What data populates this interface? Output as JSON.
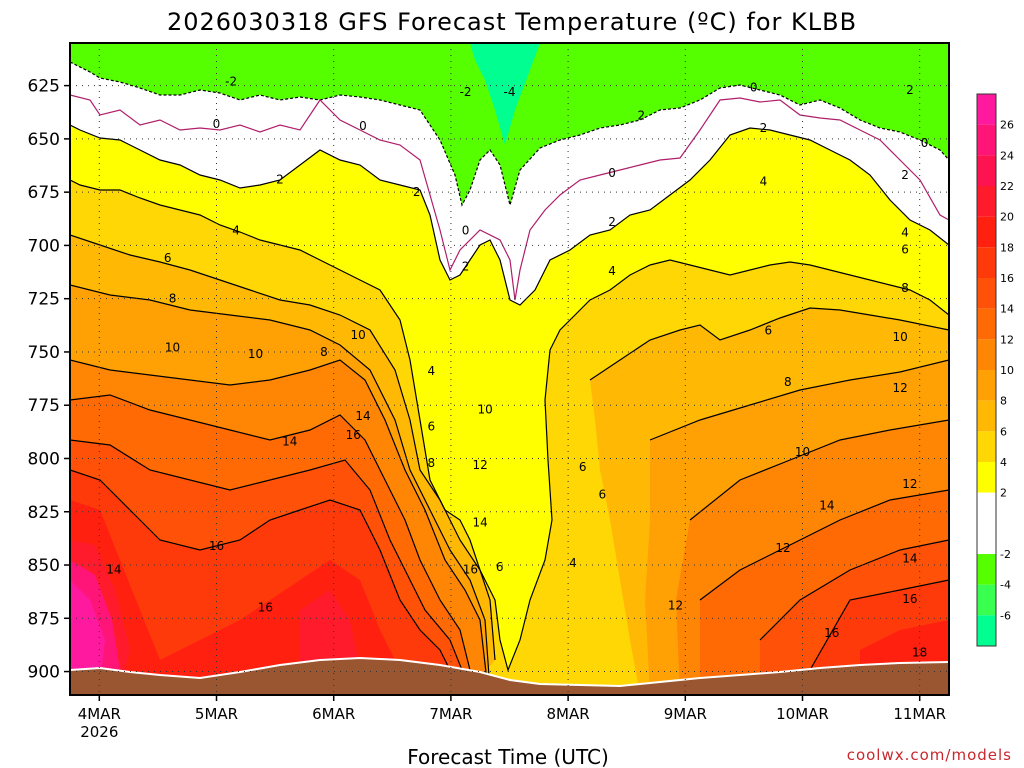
{
  "chart_data": {
    "type": "heatmap",
    "title": "2026030318 GFS Forecast Temperature (ºC) for KLBB",
    "xlabel": "Forecast Time (UTC)",
    "ylabel": "",
    "credit": "coolwx.com/models",
    "y_axis": {
      "ticks": [
        625,
        650,
        675,
        700,
        725,
        750,
        775,
        800,
        825,
        850,
        875,
        900
      ],
      "range": [
        605,
        911
      ],
      "units": "hPa",
      "inverted": true
    },
    "x_axis": {
      "ticks": [
        {
          "label": "4MAR",
          "sublabel": "2026",
          "hours": 6
        },
        {
          "label": "5MAR",
          "hours": 30
        },
        {
          "label": "6MAR",
          "hours": 54
        },
        {
          "label": "7MAR",
          "hours": 78
        },
        {
          "label": "8MAR",
          "hours": 102
        },
        {
          "label": "9MAR",
          "hours": 126
        },
        {
          "label": "10MAR",
          "hours": 150
        },
        {
          "label": "11MAR",
          "hours": 174
        }
      ],
      "range": [
        0,
        180
      ]
    },
    "grid": true,
    "colorbar": {
      "labels": [
        "26",
        "24",
        "22",
        "20",
        "18",
        "16",
        "14",
        "12",
        "10",
        "8",
        "6",
        "4",
        "2",
        "-2",
        "-4",
        "-6"
      ],
      "bands": [
        {
          "from": 26,
          "to": 28,
          "color": "#ff199f"
        },
        {
          "from": 24,
          "to": 26,
          "color": "#ff1478"
        },
        {
          "from": 22,
          "to": 24,
          "color": "#ff1250"
        },
        {
          "from": 20,
          "to": 22,
          "color": "#ff1a2c"
        },
        {
          "from": 18,
          "to": 20,
          "color": "#ff200f"
        },
        {
          "from": 16,
          "to": 18,
          "color": "#ff3a0a"
        },
        {
          "from": 14,
          "to": 16,
          "color": "#ff5208"
        },
        {
          "from": 12,
          "to": 14,
          "color": "#ff6a05"
        },
        {
          "from": 10,
          "to": 12,
          "color": "#ff8505"
        },
        {
          "from": 8,
          "to": 10,
          "color": "#ffa105"
        },
        {
          "from": 6,
          "to": 8,
          "color": "#ffb905"
        },
        {
          "from": 4,
          "to": 6,
          "color": "#ffd705"
        },
        {
          "from": 2,
          "to": 4,
          "color": "#ffff00"
        },
        {
          "from": -2,
          "to": 2,
          "color": "#ffffff"
        },
        {
          "from": -4,
          "to": -2,
          "color": "#55ff00"
        },
        {
          "from": -6,
          "to": -4,
          "color": "#38ff50"
        },
        {
          "from": -8,
          "to": -6,
          "color": "#00ff90"
        }
      ]
    },
    "surface_color": "#9a5630",
    "contour_labels": [
      {
        "text": "-2",
        "t": 33,
        "p": 623
      },
      {
        "text": "-2",
        "t": 81,
        "p": 628
      },
      {
        "text": "-4",
        "t": 90,
        "p": 628
      },
      {
        "text": "2",
        "t": 117,
        "p": 639
      },
      {
        "text": "0",
        "t": 140,
        "p": 626
      },
      {
        "text": "2",
        "t": 172,
        "p": 627
      },
      {
        "text": "0",
        "t": 30,
        "p": 643
      },
      {
        "text": "0",
        "t": 60,
        "p": 644
      },
      {
        "text": "0",
        "t": 111,
        "p": 666
      },
      {
        "text": "0",
        "t": 175,
        "p": 652
      },
      {
        "text": "2",
        "t": 142,
        "p": 645
      },
      {
        "text": "2",
        "t": 43,
        "p": 669
      },
      {
        "text": "2",
        "t": 71,
        "p": 675
      },
      {
        "text": "2",
        "t": 111,
        "p": 689
      },
      {
        "text": "2",
        "t": 171,
        "p": 667
      },
      {
        "text": "4",
        "t": 142,
        "p": 670
      },
      {
        "text": "4",
        "t": 171,
        "p": 694
      },
      {
        "text": "0",
        "t": 81,
        "p": 693
      },
      {
        "text": "4",
        "t": 34,
        "p": 693
      },
      {
        "text": "2",
        "t": 81,
        "p": 710
      },
      {
        "text": "4",
        "t": 111,
        "p": 712
      },
      {
        "text": "6",
        "t": 20,
        "p": 706
      },
      {
        "text": "6",
        "t": 171,
        "p": 702
      },
      {
        "text": "8",
        "t": 21,
        "p": 725
      },
      {
        "text": "8",
        "t": 171,
        "p": 720
      },
      {
        "text": "10",
        "t": 21,
        "p": 748
      },
      {
        "text": "10",
        "t": 38,
        "p": 751
      },
      {
        "text": "8",
        "t": 52,
        "p": 750
      },
      {
        "text": "10",
        "t": 59,
        "p": 742
      },
      {
        "text": "6",
        "t": 143,
        "p": 740
      },
      {
        "text": "10",
        "t": 170,
        "p": 743
      },
      {
        "text": "4",
        "t": 74,
        "p": 759
      },
      {
        "text": "8",
        "t": 147,
        "p": 764
      },
      {
        "text": "12",
        "t": 170,
        "p": 767
      },
      {
        "text": "14",
        "t": 60,
        "p": 780
      },
      {
        "text": "6",
        "t": 74,
        "p": 785
      },
      {
        "text": "10",
        "t": 85,
        "p": 777
      },
      {
        "text": "16",
        "t": 58,
        "p": 789
      },
      {
        "text": "14",
        "t": 45,
        "p": 792
      },
      {
        "text": "10",
        "t": 150,
        "p": 797
      },
      {
        "text": "8",
        "t": 74,
        "p": 802
      },
      {
        "text": "12",
        "t": 84,
        "p": 803
      },
      {
        "text": "6",
        "t": 105,
        "p": 804
      },
      {
        "text": "12",
        "t": 172,
        "p": 812
      },
      {
        "text": "6",
        "t": 109,
        "p": 817
      },
      {
        "text": "14",
        "t": 84,
        "p": 830
      },
      {
        "text": "14",
        "t": 155,
        "p": 822
      },
      {
        "text": "16",
        "t": 30,
        "p": 841
      },
      {
        "text": "12",
        "t": 146,
        "p": 842
      },
      {
        "text": "14",
        "t": 9,
        "p": 852
      },
      {
        "text": "16",
        "t": 82,
        "p": 852
      },
      {
        "text": "6",
        "t": 88,
        "p": 851
      },
      {
        "text": "4",
        "t": 103,
        "p": 849
      },
      {
        "text": "14",
        "t": 172,
        "p": 847
      },
      {
        "text": "16",
        "t": 40,
        "p": 870
      },
      {
        "text": "12",
        "t": 124,
        "p": 869
      },
      {
        "text": "16",
        "t": 172,
        "p": 866
      },
      {
        "text": "16",
        "t": 156,
        "p": 882
      },
      {
        "text": "18",
        "t": 174,
        "p": 891
      }
    ]
  }
}
